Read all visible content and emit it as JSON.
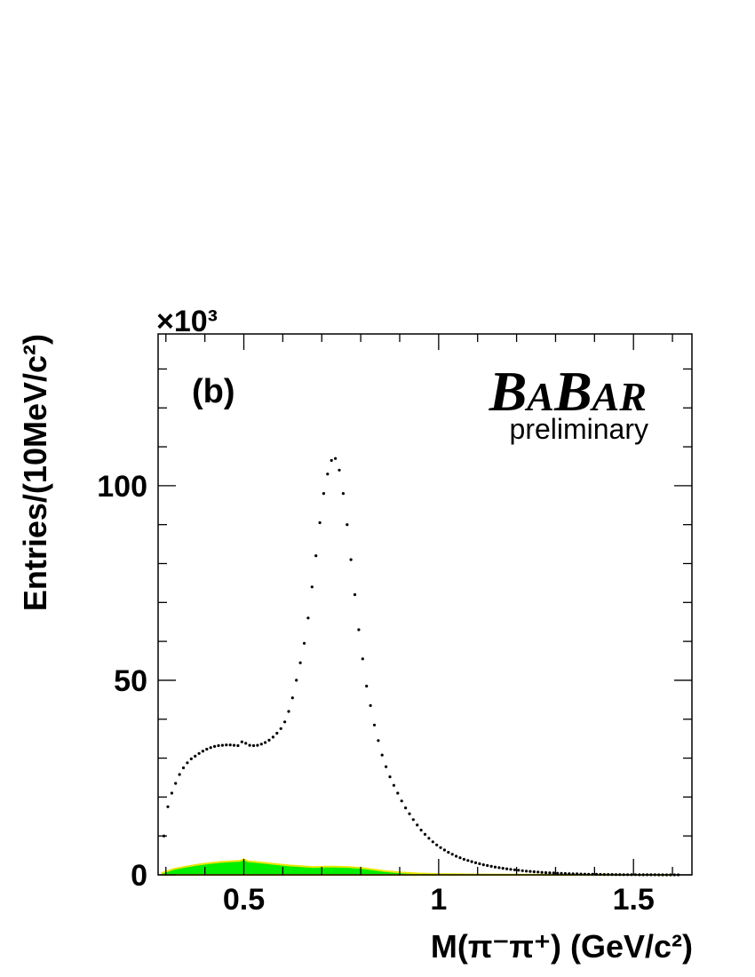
{
  "chart_data": {
    "type": "scatter",
    "panel_label": "(b)",
    "experiment": {
      "logo": "BABAR",
      "status": "preliminary"
    },
    "xlabel": "M(π⁻π⁺) (GeV/c²)",
    "ylabel": "Entries/(10MeV/c²)",
    "y_multiplier": "×10³",
    "xlim": [
      0.28,
      1.65
    ],
    "ylim": [
      0,
      139
    ],
    "x_ticks": [
      0.5,
      1,
      1.5
    ],
    "x_tick_labels": [
      "0.5",
      "1",
      "1.5"
    ],
    "y_ticks": [
      0,
      50,
      100
    ],
    "y_tick_labels": [
      "0",
      "50",
      "100"
    ],
    "grid": false,
    "colors": {
      "background_fill": "#00ee00",
      "background_outline": "#e8e800",
      "points": "#000000"
    },
    "series": [
      {
        "x": [
          0.295,
          0.305,
          0.315,
          0.325,
          0.335,
          0.345,
          0.355,
          0.365,
          0.375,
          0.385,
          0.395,
          0.405,
          0.415,
          0.425,
          0.435,
          0.445,
          0.455,
          0.465,
          0.475,
          0.485,
          0.495,
          0.505,
          0.515,
          0.525,
          0.535,
          0.545,
          0.555,
          0.565,
          0.575,
          0.585,
          0.595,
          0.605,
          0.615,
          0.625,
          0.635,
          0.645,
          0.655,
          0.665,
          0.675,
          0.685,
          0.695,
          0.705,
          0.715,
          0.725,
          0.735,
          0.745,
          0.755,
          0.765,
          0.775,
          0.785,
          0.795,
          0.805,
          0.815,
          0.825,
          0.835,
          0.845,
          0.855,
          0.865,
          0.875,
          0.885,
          0.895,
          0.905,
          0.915,
          0.925,
          0.935,
          0.945,
          0.955,
          0.965,
          0.975,
          0.985,
          0.995,
          1.005,
          1.015,
          1.025,
          1.035,
          1.045,
          1.055,
          1.065,
          1.075,
          1.085,
          1.095,
          1.105,
          1.115,
          1.125,
          1.135,
          1.145,
          1.155,
          1.165,
          1.175,
          1.185,
          1.195,
          1.205,
          1.215,
          1.225,
          1.235,
          1.245,
          1.255,
          1.265,
          1.275,
          1.285,
          1.295,
          1.305,
          1.315,
          1.325,
          1.335,
          1.345,
          1.355,
          1.365,
          1.375,
          1.385,
          1.395,
          1.405,
          1.415,
          1.425,
          1.435,
          1.445,
          1.455,
          1.465,
          1.475,
          1.485,
          1.495,
          1.505,
          1.515,
          1.525,
          1.535,
          1.545,
          1.555,
          1.565,
          1.575,
          1.585,
          1.595,
          1.605,
          1.615
        ],
        "y": [
          10,
          17.5,
          21,
          23.5,
          25.8,
          27.5,
          28.8,
          29.8,
          30.5,
          31.2,
          31.8,
          32.3,
          32.7,
          33,
          33.2,
          33.3,
          33.4,
          33.4,
          33.3,
          33.2,
          34.2,
          33.8,
          33.3,
          33.2,
          33.3,
          33.6,
          34,
          34.6,
          35.4,
          36.4,
          37.6,
          39.3,
          42,
          45.5,
          50,
          54.5,
          59.5,
          66,
          74,
          82,
          90.5,
          98,
          103,
          106.5,
          107,
          104,
          98,
          90,
          81,
          72,
          63,
          55.5,
          48.5,
          43.5,
          38.5,
          34.5,
          30.8,
          27.8,
          25.2,
          23,
          21,
          19,
          17.2,
          15.7,
          14.2,
          12.8,
          11.5,
          10.4,
          9.4,
          8.5,
          7.7,
          7,
          6.4,
          5.8,
          5.3,
          4.8,
          4.4,
          4,
          3.7,
          3.4,
          3.1,
          2.85,
          2.6,
          2.4,
          2.2,
          2,
          1.85,
          1.7,
          1.55,
          1.42,
          1.3,
          1.18,
          1.07,
          0.97,
          0.88,
          0.8,
          0.72,
          0.65,
          0.58,
          0.52,
          0.47,
          0.42,
          0.38,
          0.34,
          0.3,
          0.27,
          0.24,
          0.21,
          0.19,
          0.17,
          0.15,
          0.13,
          0.12,
          0.1,
          0.09,
          0.08,
          0.07,
          0.06,
          0.05,
          0.05,
          0.04,
          0.04,
          0.03,
          0.03,
          0.02,
          0.02,
          0.02,
          0.01,
          0.01,
          0.01,
          0.01,
          0.01,
          0.01
        ]
      },
      {
        "type": "area",
        "x": [
          0.29,
          0.32,
          0.35,
          0.38,
          0.41,
          0.44,
          0.47,
          0.49,
          0.5,
          0.51,
          0.53,
          0.56,
          0.59,
          0.62,
          0.65,
          0.68,
          0.71,
          0.74,
          0.77,
          0.8,
          0.83,
          0.86,
          0.89,
          0.92,
          0.95,
          1.0,
          1.1,
          1.2,
          1.3,
          1.4,
          1.5,
          1.6
        ],
        "y": [
          0.5,
          1.5,
          2.1,
          2.6,
          3.0,
          3.3,
          3.5,
          3.6,
          4.0,
          3.5,
          3.3,
          3.0,
          2.7,
          2.4,
          2.2,
          2.0,
          2.1,
          2.1,
          2.0,
          1.8,
          1.4,
          1.0,
          0.7,
          0.5,
          0.35,
          0.2,
          0.1,
          0.05,
          0.03,
          0.02,
          0.01,
          0.01
        ]
      }
    ]
  }
}
